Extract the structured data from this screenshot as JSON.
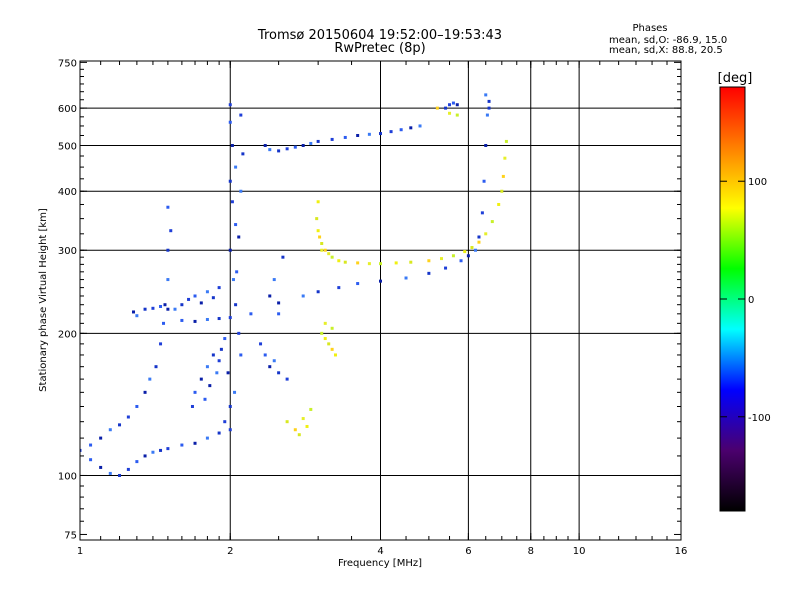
{
  "chart_data": {
    "type": "scatter",
    "title": "Tromsø 20150604 19:52:00–19:53:43",
    "subtitle": "RwPretec (8p)",
    "xlabel": "Frequency [MHz]",
    "ylabel": "Stationary phase Virtual Height [km]",
    "x_scale": "log",
    "y_scale": "log",
    "xlim": [
      1,
      16
    ],
    "ylim": [
      73,
      755
    ],
    "x_ticks": [
      1,
      2,
      4,
      6,
      8,
      10,
      16
    ],
    "y_ticks": [
      75,
      100,
      200,
      300,
      400,
      500,
      600,
      750
    ],
    "x_grid": [
      2,
      4,
      6,
      8,
      10
    ],
    "y_grid": [
      100,
      200,
      300,
      400,
      500,
      600
    ],
    "grid": true,
    "phase_info": {
      "heading": "Phases",
      "line1": "mean, sd,O: -86.9, 15.0",
      "line2": "mean, sd,X:  88.8, 20.5"
    },
    "colorbar": {
      "label": "[deg]",
      "ticks": [
        100,
        0,
        -100
      ],
      "range": [
        -180,
        180
      ],
      "colors": [
        "#000000",
        "#4b006e",
        "#0000ff",
        "#00ffff",
        "#00ff00",
        "#ffff00",
        "#ff8000",
        "#ff0000"
      ]
    },
    "series": [
      {
        "values": [
          [
            1.0,
            113
          ],
          [
            1.05,
            108
          ],
          [
            1.1,
            104
          ],
          [
            1.15,
            101
          ],
          [
            1.2,
            100
          ],
          [
            1.25,
            103
          ],
          [
            1.3,
            107
          ],
          [
            1.35,
            110
          ],
          [
            1.4,
            112
          ],
          [
            1.45,
            113
          ],
          [
            1.5,
            114
          ],
          [
            1.6,
            116
          ],
          [
            1.7,
            117
          ],
          [
            1.8,
            120
          ],
          [
            1.9,
            123
          ],
          [
            2.0,
            125
          ],
          [
            1.05,
            116
          ],
          [
            1.1,
            120
          ],
          [
            1.15,
            125
          ],
          [
            1.2,
            128
          ],
          [
            1.25,
            133
          ],
          [
            1.3,
            140
          ],
          [
            1.35,
            150
          ],
          [
            1.38,
            160
          ],
          [
            1.42,
            170
          ],
          [
            1.45,
            190
          ],
          [
            1.47,
            210
          ],
          [
            1.48,
            230
          ],
          [
            1.5,
            260
          ],
          [
            1.5,
            300
          ],
          [
            1.52,
            330
          ],
          [
            1.5,
            370
          ],
          [
            1.28,
            222
          ],
          [
            1.3,
            218
          ],
          [
            1.35,
            225
          ],
          [
            1.4,
            226
          ],
          [
            1.45,
            228
          ],
          [
            1.5,
            225
          ],
          [
            1.55,
            225
          ],
          [
            1.6,
            230
          ],
          [
            1.65,
            236
          ],
          [
            1.7,
            240
          ],
          [
            1.75,
            232
          ],
          [
            1.8,
            245
          ],
          [
            1.85,
            238
          ],
          [
            1.9,
            250
          ],
          [
            1.6,
            213
          ],
          [
            1.7,
            212
          ],
          [
            1.8,
            214
          ],
          [
            1.9,
            215
          ],
          [
            2.0,
            216
          ],
          [
            2.2,
            220
          ],
          [
            2.5,
            232
          ],
          [
            2.8,
            240
          ],
          [
            3.0,
            245
          ],
          [
            3.3,
            250
          ],
          [
            3.6,
            255
          ],
          [
            4.0,
            258
          ],
          [
            4.5,
            262
          ],
          [
            5.0,
            268
          ],
          [
            5.4,
            275
          ],
          [
            5.8,
            285
          ],
          [
            6.0,
            292
          ],
          [
            6.2,
            300
          ],
          [
            6.3,
            320
          ],
          [
            6.4,
            360
          ],
          [
            6.45,
            420
          ],
          [
            6.5,
            500
          ],
          [
            6.55,
            580
          ],
          [
            6.6,
            620
          ],
          [
            2.0,
            610
          ],
          [
            2.0,
            560
          ],
          [
            2.02,
            500
          ],
          [
            2.05,
            450
          ],
          [
            2.0,
            420
          ],
          [
            2.02,
            380
          ],
          [
            2.05,
            340
          ],
          [
            2.0,
            300
          ],
          [
            2.03,
            260
          ],
          [
            2.05,
            230
          ],
          [
            2.08,
            200
          ],
          [
            2.1,
            180
          ],
          [
            1.98,
            165
          ],
          [
            2.04,
            150
          ],
          [
            2.0,
            140
          ],
          [
            1.95,
            130
          ],
          [
            2.06,
            270
          ],
          [
            2.08,
            320
          ],
          [
            2.1,
            400
          ],
          [
            2.12,
            480
          ],
          [
            2.1,
            580
          ],
          [
            1.7,
            150
          ],
          [
            1.75,
            160
          ],
          [
            1.8,
            170
          ],
          [
            1.85,
            180
          ],
          [
            1.9,
            175
          ],
          [
            1.78,
            145
          ],
          [
            1.82,
            155
          ],
          [
            1.88,
            165
          ],
          [
            1.92,
            185
          ],
          [
            1.68,
            140
          ],
          [
            1.95,
            195
          ],
          [
            2.35,
            500
          ],
          [
            2.4,
            490
          ],
          [
            2.5,
            487
          ],
          [
            2.6,
            492
          ],
          [
            2.7,
            496
          ],
          [
            2.8,
            500
          ],
          [
            2.9,
            505
          ],
          [
            3.0,
            510
          ],
          [
            3.2,
            515
          ],
          [
            3.4,
            520
          ],
          [
            3.6,
            525
          ],
          [
            3.8,
            528
          ],
          [
            4.0,
            530
          ],
          [
            4.2,
            535
          ],
          [
            4.4,
            540
          ],
          [
            4.6,
            545
          ],
          [
            4.8,
            550
          ],
          [
            5.4,
            600
          ],
          [
            5.5,
            610
          ],
          [
            5.6,
            615
          ],
          [
            5.7,
            610
          ],
          [
            6.5,
            640
          ],
          [
            6.6,
            600
          ],
          [
            2.3,
            190
          ],
          [
            2.35,
            180
          ],
          [
            2.4,
            170
          ],
          [
            2.45,
            175
          ],
          [
            2.5,
            165
          ],
          [
            2.6,
            160
          ],
          [
            2.5,
            220
          ],
          [
            2.4,
            240
          ],
          [
            2.45,
            260
          ],
          [
            2.55,
            290
          ]
        ]
      },
      {
        "values": [
          [
            3.0,
            330
          ],
          [
            3.05,
            310
          ],
          [
            3.1,
            300
          ],
          [
            3.15,
            295
          ],
          [
            3.2,
            290
          ],
          [
            3.3,
            285
          ],
          [
            3.4,
            283
          ],
          [
            3.6,
            282
          ],
          [
            3.8,
            281
          ],
          [
            4.0,
            281
          ],
          [
            4.3,
            282
          ],
          [
            4.6,
            283
          ],
          [
            5.0,
            285
          ],
          [
            5.3,
            288
          ],
          [
            5.6,
            292
          ],
          [
            5.9,
            298
          ],
          [
            6.1,
            304
          ],
          [
            6.3,
            312
          ],
          [
            6.5,
            325
          ],
          [
            6.7,
            345
          ],
          [
            6.9,
            375
          ],
          [
            7.0,
            400
          ],
          [
            7.05,
            430
          ],
          [
            7.1,
            470
          ],
          [
            7.15,
            510
          ],
          [
            3.0,
            380
          ],
          [
            2.98,
            350
          ],
          [
            3.02,
            320
          ],
          [
            3.05,
            300
          ],
          [
            3.05,
            200
          ],
          [
            3.1,
            195
          ],
          [
            3.15,
            190
          ],
          [
            3.2,
            185
          ],
          [
            3.1,
            210
          ],
          [
            3.2,
            205
          ],
          [
            3.25,
            180
          ],
          [
            2.6,
            130
          ],
          [
            2.7,
            125
          ],
          [
            2.8,
            132
          ],
          [
            2.9,
            138
          ],
          [
            2.85,
            127
          ],
          [
            2.75,
            122
          ],
          [
            5.2,
            600
          ],
          [
            5.5,
            585
          ],
          [
            5.7,
            580
          ]
        ]
      }
    ]
  }
}
